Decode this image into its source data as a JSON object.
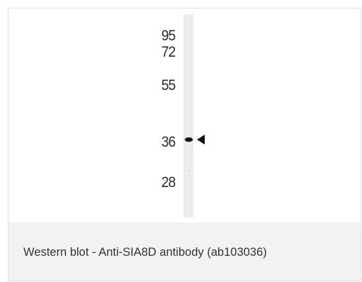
{
  "figure": {
    "markers": [
      {
        "label": "95"
      },
      {
        "label": "72"
      },
      {
        "label": "55"
      },
      {
        "label": "36"
      },
      {
        "label": "28"
      }
    ],
    "band_indicator_icon": "left-pointing-triangle-icon",
    "caption": "Western blot - Anti-SIA8D antibody (ab103036)"
  }
}
